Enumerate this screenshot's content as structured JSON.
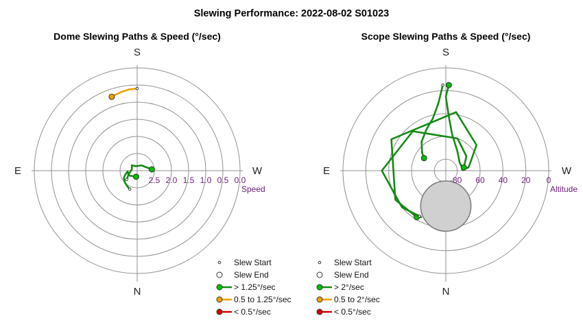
{
  "title": "Slewing Performance: 2022-08-02 S01023",
  "colors": {
    "fast": "#00c000",
    "fast_line": "#148a14",
    "medium": "#f0a000",
    "slow": "#d00000",
    "grid": "#909090",
    "label": "#6a1b7a",
    "obstruction": "#d0d0d0"
  },
  "chart_data": [
    {
      "type": "polar-path",
      "title": "Dome Slewing Paths & Speed (°/sec)",
      "compass": {
        "top": "S",
        "bottom": "N",
        "left": "E",
        "right": "W"
      },
      "radial_axis": {
        "label": "Speed",
        "range": [
          3.0,
          0.0
        ],
        "ticks": [
          2.5,
          2.0,
          1.5,
          1.0,
          0.5,
          0.0
        ],
        "tick_labels": [
          "2.5",
          "2.0",
          "1.5",
          "1.0",
          "0.5",
          "0.0"
        ]
      },
      "legend": {
        "placement": "bottom-right",
        "entries": [
          {
            "label": "Slew Start",
            "symbol": "small-circle"
          },
          {
            "label": "Slew End",
            "symbol": "open-circle"
          },
          {
            "label": "> 1.25°/sec",
            "color": "#00c000"
          },
          {
            "label": "0.5 to 1.25°/sec",
            "color": "#f0a000"
          },
          {
            "label": "< 0.5°/sec",
            "color": "#d00000"
          }
        ]
      },
      "paths": [
        {
          "category": "0.5 to 1.25°/sec",
          "points": [
            [
              0,
              0.6
            ],
            [
              6,
              0.62
            ],
            [
              12,
              0.66
            ],
            [
              19,
              0.72
            ]
          ],
          "start": [
            0,
            0.6
          ],
          "end": [
            19,
            0.72
          ]
        },
        {
          "category": "> 1.25°/sec",
          "points": [
            [
              170,
              2.82
            ],
            [
              120,
              2.72
            ],
            [
              95,
              2.72
            ],
            [
              110,
              2.62
            ],
            [
              120,
              2.55
            ],
            [
              135,
              2.5
            ],
            [
              150,
              2.45
            ],
            [
              158,
              2.42
            ]
          ],
          "start": [
            158,
            2.42
          ],
          "end": [
            170,
            2.82
          ]
        },
        {
          "category": "> 1.25°/sec",
          "points": [
            [
              130,
              2.6
            ],
            [
              115,
              2.72
            ],
            [
              75,
              2.84
            ],
            [
              45,
              2.78
            ],
            [
              20,
              2.86
            ],
            [
              -10,
              2.86
            ],
            [
              -40,
              2.8
            ],
            [
              -65,
              2.74
            ],
            [
              -85,
              2.57
            ]
          ],
          "start": [
            130,
            2.6
          ],
          "end": [
            -85,
            2.57
          ]
        }
      ]
    },
    {
      "type": "polar-path",
      "title": "Scope Slewing Paths & Speed (°/sec)",
      "compass": {
        "top": "S",
        "bottom": "N",
        "left": "E",
        "right": "W"
      },
      "radial_axis": {
        "label": "Altitude",
        "range": [
          90,
          0
        ],
        "ticks": [
          80,
          60,
          40,
          20,
          0
        ],
        "tick_labels": [
          "80",
          "60",
          "40",
          "20",
          "0"
        ]
      },
      "obstruction": {
        "shape": "circle",
        "center_az": 180,
        "center_alt": 59,
        "radius_deg": 22
      },
      "legend": {
        "placement": "bottom-left",
        "entries": [
          {
            "label": "Slew Start",
            "symbol": "small-circle"
          },
          {
            "label": "Slew End",
            "symbol": "open-circle"
          },
          {
            "label": "> 2°/sec",
            "color": "#00c000"
          },
          {
            "label": "0.5 to 2°/sec",
            "color": "#f0a000"
          },
          {
            "label": "< 0.5°/sec",
            "color": "#d00000"
          }
        ]
      },
      "paths": [
        {
          "category": "> 2°/sec",
          "points": [
            [
              -85,
              75
            ],
            [
              -60,
              76
            ],
            [
              -30,
              70
            ],
            [
              -10,
              58
            ],
            [
              -3,
              42
            ],
            [
              0,
              25
            ],
            [
              -2,
              15
            ]
          ],
          "start": [
            -85,
            75
          ],
          "end": [
            -2,
            15
          ]
        },
        {
          "category": "> 2°/sec",
          "points": [
            [
              2,
              15
            ],
            [
              6,
              30
            ],
            [
              14,
              43
            ],
            [
              25,
              50
            ],
            [
              40,
              57
            ],
            [
              53,
              64
            ],
            [
              60,
              68
            ]
          ],
          "start": [
            2,
            15
          ],
          "end": [
            60,
            68
          ]
        },
        {
          "category": "> 2°/sec",
          "points": [
            [
              -85,
              75
            ],
            [
              -82,
              70
            ],
            [
              -65,
              65
            ],
            [
              -50,
              55
            ],
            [
              -10,
              38
            ],
            [
              60,
              35
            ],
            [
              120,
              39
            ],
            [
              148,
              42
            ],
            [
              152,
              44
            ]
          ],
          "start": [
            -85,
            75
          ],
          "end": [
            148,
            42
          ]
        },
        {
          "category": "> 2°/sec",
          "points": [
            [
              150,
              44
            ],
            [
              130,
              40
            ],
            [
              90,
              34
            ],
            [
              40,
              45
            ],
            [
              -20,
              60
            ],
            [
              -55,
              68
            ],
            [
              -80,
              74
            ]
          ],
          "start": [
            150,
            44
          ],
          "end": [
            -80,
            74
          ]
        }
      ]
    }
  ]
}
